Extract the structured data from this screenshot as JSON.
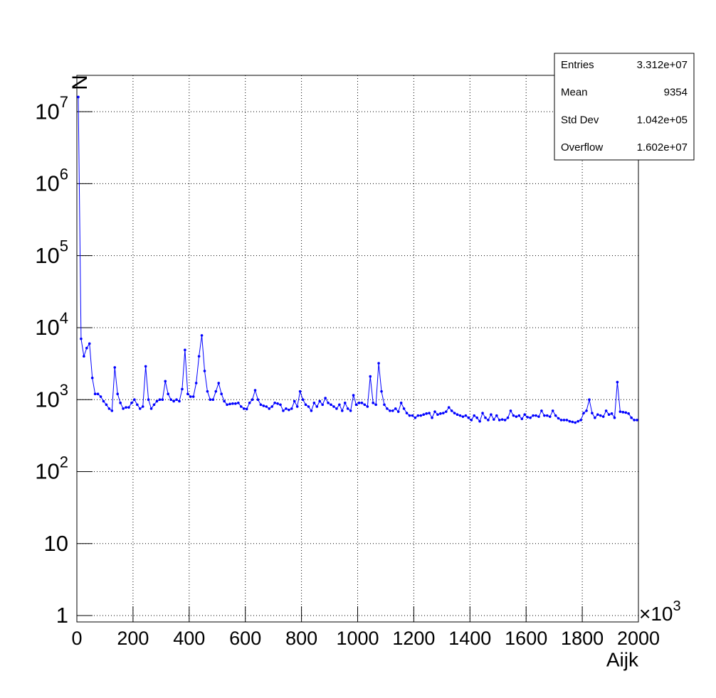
{
  "chart_data": {
    "type": "line",
    "y_label": "N",
    "x_label": "Aijk",
    "x_multiplier_base": "×10",
    "x_multiplier_exp": "3",
    "color": "#0000ff",
    "log_y": true,
    "grid": true,
    "stats": {
      "rows": [
        [
          "Entries",
          "3.312e+07"
        ],
        [
          "Mean",
          "9354"
        ],
        [
          "Std Dev",
          "1.042e+05"
        ],
        [
          "Overflow",
          "1.602e+07"
        ]
      ]
    },
    "xlim": [
      0,
      2000
    ],
    "ylim": [
      0.815,
      32000000
    ],
    "xticks": [
      0,
      200,
      400,
      600,
      800,
      1000,
      1200,
      1400,
      1600,
      1800,
      2000
    ],
    "yticks": [
      1,
      10,
      {
        "value": 100,
        "label": "10^2"
      },
      {
        "value": 1000,
        "label": "10^3"
      },
      {
        "value": 10000,
        "label": "10^4"
      },
      {
        "value": 100000,
        "label": "10^5"
      },
      {
        "value": 1000000,
        "label": "10^6"
      },
      {
        "value": 10000000,
        "label": "10^7"
      }
    ],
    "x": [
      5,
      15,
      25,
      35,
      45,
      55,
      65,
      75,
      85,
      95,
      105,
      115,
      125,
      135,
      145,
      155,
      165,
      175,
      185,
      195,
      205,
      215,
      225,
      235,
      245,
      255,
      265,
      275,
      285,
      295,
      305,
      315,
      325,
      335,
      345,
      355,
      365,
      375,
      385,
      395,
      405,
      415,
      425,
      435,
      445,
      455,
      465,
      475,
      485,
      495,
      505,
      515,
      525,
      535,
      545,
      555,
      565,
      575,
      585,
      595,
      605,
      615,
      625,
      635,
      645,
      655,
      665,
      675,
      685,
      695,
      705,
      715,
      725,
      735,
      745,
      755,
      765,
      775,
      785,
      795,
      805,
      815,
      825,
      835,
      845,
      855,
      865,
      875,
      885,
      895,
      905,
      915,
      925,
      935,
      945,
      955,
      965,
      975,
      985,
      995,
      1005,
      1015,
      1025,
      1035,
      1045,
      1055,
      1065,
      1075,
      1085,
      1095,
      1105,
      1115,
      1125,
      1135,
      1145,
      1155,
      1165,
      1175,
      1185,
      1195,
      1205,
      1215,
      1225,
      1235,
      1245,
      1255,
      1265,
      1275,
      1285,
      1295,
      1305,
      1315,
      1325,
      1335,
      1345,
      1355,
      1365,
      1375,
      1385,
      1395,
      1405,
      1415,
      1425,
      1435,
      1445,
      1455,
      1465,
      1475,
      1485,
      1495,
      1505,
      1515,
      1525,
      1535,
      1545,
      1555,
      1565,
      1575,
      1585,
      1595,
      1605,
      1615,
      1625,
      1635,
      1645,
      1655,
      1665,
      1675,
      1685,
      1695,
      1705,
      1715,
      1725,
      1735,
      1745,
      1755,
      1765,
      1775,
      1785,
      1795,
      1805,
      1815,
      1825,
      1835,
      1845,
      1855,
      1865,
      1875,
      1885,
      1895,
      1905,
      1915,
      1925,
      1935,
      1945,
      1955,
      1965,
      1975,
      1985,
      1995
    ],
    "values": [
      16000000,
      7000,
      4000,
      5200,
      6000,
      2000,
      1200,
      1200,
      1100,
      950,
      850,
      750,
      700,
      2800,
      1200,
      900,
      750,
      780,
      780,
      900,
      1000,
      850,
      750,
      800,
      2900,
      1000,
      750,
      850,
      950,
      1000,
      1000,
      1800,
      1200,
      1000,
      950,
      1000,
      950,
      1400,
      4900,
      1200,
      1100,
      1100,
      1700,
      4000,
      7800,
      2500,
      1300,
      1000,
      1000,
      1300,
      1700,
      1200,
      950,
      850,
      870,
      880,
      880,
      900,
      800,
      750,
      740,
      900,
      1000,
      1350,
      1000,
      850,
      820,
      800,
      750,
      800,
      900,
      880,
      850,
      700,
      750,
      720,
      750,
      950,
      800,
      1300,
      1000,
      850,
      800,
      700,
      900,
      800,
      950,
      850,
      1050,
      900,
      850,
      800,
      750,
      850,
      700,
      900,
      750,
      700,
      1150,
      850,
      900,
      900,
      850,
      800,
      2100,
      900,
      850,
      3200,
      1300,
      850,
      750,
      700,
      700,
      750,
      680,
      900,
      750,
      650,
      600,
      600,
      560,
      600,
      600,
      620,
      640,
      650,
      560,
      680,
      620,
      640,
      650,
      680,
      780,
      700,
      650,
      620,
      600,
      580,
      600,
      560,
      520,
      600,
      560,
      500,
      650,
      560,
      520,
      620,
      530,
      600,
      520,
      530,
      520,
      560,
      700,
      600,
      580,
      600,
      540,
      620,
      570,
      560,
      600,
      600,
      580,
      700,
      600,
      600,
      580,
      700,
      600,
      550,
      520,
      520,
      520,
      500,
      490,
      480,
      500,
      520,
      650,
      700,
      1000,
      650,
      560,
      620,
      600,
      580,
      700,
      620,
      640,
      560,
      1750,
      680,
      670,
      660,
      640,
      560,
      520,
      520
    ]
  }
}
